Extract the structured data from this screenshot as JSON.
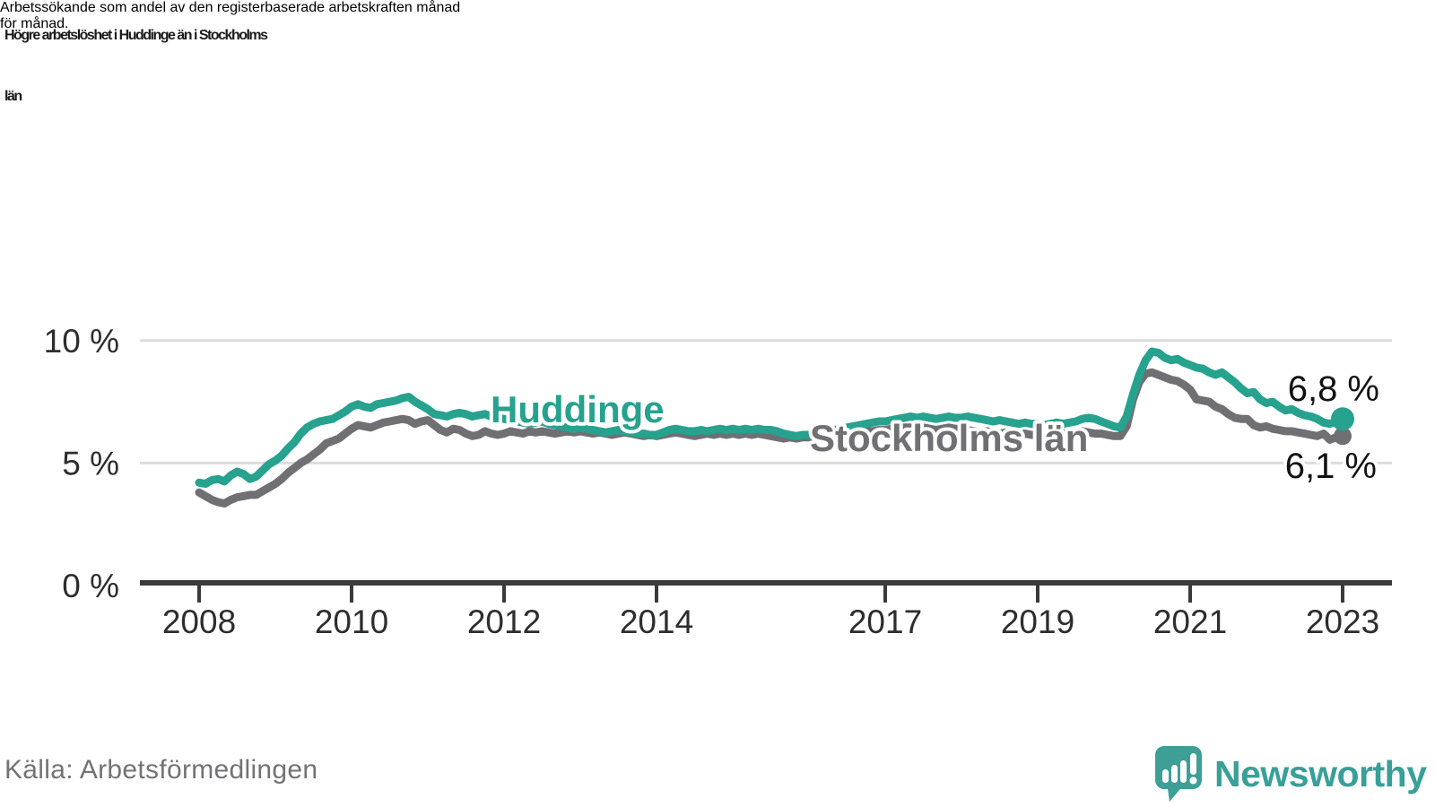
{
  "header": {
    "title_lines": [
      "Högre arbetslöshet i Huddinge än i Stockholms",
      "län"
    ],
    "subtitle_lines": [
      "Arbetssökande som andel av den registerbaserade arbetskraften månad",
      "för månad."
    ]
  },
  "footer": {
    "source": "Källa: Arbetsförmedlingen",
    "brand": "Newsworthy",
    "logo_icon": "newsworthy-speech-bubble-bar-chart-icon"
  },
  "colors": {
    "huddinge": "#26a28e",
    "stockholm": "#6f6f74",
    "grid": "#dcdcdc",
    "axis": "#3a3a3a",
    "tick_label": "#2d2d2d",
    "value_label": "#111111",
    "title": "#1b1b1b",
    "source": "#737376",
    "brand": "#38a098"
  },
  "chart_data": {
    "type": "line",
    "title": "Högre arbetslöshet i Huddinge än i Stockholms län",
    "subtitle": "Arbetssökande som andel av den registerbaserade arbetskraften månad för månad.",
    "xlabel": "",
    "ylabel": "",
    "x_unit": "month",
    "x_start_year": 2008,
    "x_end": "2023-01",
    "ylim": [
      0,
      10.7
    ],
    "grid": "horizontal-only",
    "legend": "inline-labels-on-lines",
    "x_ticks": [
      {
        "v": 2008,
        "label": "2008"
      },
      {
        "v": 2010,
        "label": "2010"
      },
      {
        "v": 2012,
        "label": "2012"
      },
      {
        "v": 2014,
        "label": "2014"
      },
      {
        "v": 2017,
        "label": "2017"
      },
      {
        "v": 2019,
        "label": "2019"
      },
      {
        "v": 2021,
        "label": "2021"
      },
      {
        "v": 2023,
        "label": "2023"
      }
    ],
    "y_ticks": [
      {
        "v": 0,
        "label": "0 %"
      },
      {
        "v": 5,
        "label": "5 %"
      },
      {
        "v": 10,
        "label": "10 %"
      }
    ],
    "series": [
      {
        "name": "Huddinge",
        "color": "#26a28e",
        "end_label": "6,8 %",
        "end_value": 6.8,
        "end_marker": true,
        "values": [
          4.2,
          4.15,
          4.3,
          4.35,
          4.25,
          4.5,
          4.65,
          4.55,
          4.35,
          4.45,
          4.7,
          4.95,
          5.1,
          5.3,
          5.6,
          5.85,
          6.2,
          6.45,
          6.6,
          6.7,
          6.75,
          6.8,
          6.95,
          7.1,
          7.3,
          7.4,
          7.3,
          7.25,
          7.4,
          7.45,
          7.5,
          7.55,
          7.65,
          7.7,
          7.5,
          7.35,
          7.2,
          7.0,
          6.95,
          6.9,
          7.0,
          7.05,
          7.0,
          6.9,
          6.95,
          7.0,
          6.9,
          6.85,
          6.8,
          6.75,
          6.7,
          6.65,
          6.6,
          6.65,
          6.7,
          6.6,
          6.55,
          6.5,
          6.45,
          6.4,
          6.45,
          6.4,
          6.35,
          6.3,
          6.25,
          6.3,
          6.35,
          6.3,
          6.25,
          6.2,
          6.2,
          6.15,
          6.15,
          6.25,
          6.35,
          6.4,
          6.35,
          6.3,
          6.3,
          6.35,
          6.3,
          6.35,
          6.4,
          6.35,
          6.4,
          6.35,
          6.4,
          6.35,
          6.4,
          6.35,
          6.35,
          6.3,
          6.2,
          6.15,
          6.1,
          6.15,
          6.15,
          6.2,
          6.25,
          6.3,
          6.35,
          6.4,
          6.45,
          6.5,
          6.55,
          6.6,
          6.65,
          6.7,
          6.7,
          6.75,
          6.8,
          6.85,
          6.9,
          6.85,
          6.9,
          6.85,
          6.8,
          6.85,
          6.9,
          6.85,
          6.85,
          6.9,
          6.85,
          6.8,
          6.75,
          6.7,
          6.75,
          6.7,
          6.65,
          6.6,
          6.65,
          6.6,
          6.6,
          6.55,
          6.6,
          6.65,
          6.6,
          6.65,
          6.7,
          6.8,
          6.85,
          6.8,
          6.7,
          6.6,
          6.5,
          6.45,
          6.9,
          7.8,
          8.6,
          9.2,
          9.55,
          9.5,
          9.3,
          9.2,
          9.25,
          9.1,
          9.0,
          8.9,
          8.85,
          8.7,
          8.6,
          8.7,
          8.5,
          8.3,
          8.05,
          7.85,
          7.9,
          7.6,
          7.45,
          7.5,
          7.3,
          7.15,
          7.2,
          7.05,
          6.95,
          6.9,
          6.8,
          6.65,
          6.6,
          6.7,
          6.8
        ]
      },
      {
        "name": "Stockholms län",
        "color": "#6f6f74",
        "end_label": "6,1 %",
        "end_value": 6.1,
        "end_marker": true,
        "values": [
          3.8,
          3.65,
          3.5,
          3.4,
          3.35,
          3.5,
          3.6,
          3.65,
          3.7,
          3.7,
          3.85,
          4.0,
          4.15,
          4.35,
          4.6,
          4.8,
          5.0,
          5.15,
          5.35,
          5.55,
          5.8,
          5.9,
          6.0,
          6.2,
          6.4,
          6.55,
          6.5,
          6.45,
          6.55,
          6.65,
          6.7,
          6.75,
          6.8,
          6.75,
          6.6,
          6.7,
          6.75,
          6.55,
          6.35,
          6.25,
          6.4,
          6.35,
          6.2,
          6.1,
          6.15,
          6.3,
          6.2,
          6.15,
          6.2,
          6.3,
          6.25,
          6.2,
          6.3,
          6.25,
          6.3,
          6.25,
          6.2,
          6.25,
          6.3,
          6.25,
          6.3,
          6.25,
          6.2,
          6.25,
          6.2,
          6.15,
          6.2,
          6.25,
          6.2,
          6.15,
          6.1,
          6.15,
          6.1,
          6.15,
          6.2,
          6.25,
          6.2,
          6.15,
          6.1,
          6.15,
          6.2,
          6.15,
          6.2,
          6.15,
          6.2,
          6.15,
          6.2,
          6.15,
          6.2,
          6.15,
          6.1,
          6.05,
          6.0,
          6.05,
          6.0,
          6.05,
          6.05,
          6.1,
          6.1,
          6.15,
          6.15,
          6.2,
          6.2,
          6.25,
          6.25,
          6.3,
          6.3,
          6.35,
          6.35,
          6.4,
          6.4,
          6.45,
          6.45,
          6.4,
          6.45,
          6.4,
          6.35,
          6.4,
          6.45,
          6.4,
          6.4,
          6.35,
          6.3,
          6.25,
          6.3,
          6.25,
          6.2,
          6.25,
          6.2,
          6.15,
          6.2,
          6.15,
          6.15,
          6.1,
          6.15,
          6.2,
          6.25,
          6.2,
          6.25,
          6.3,
          6.25,
          6.2,
          6.2,
          6.15,
          6.1,
          6.1,
          6.5,
          7.6,
          8.3,
          8.65,
          8.7,
          8.6,
          8.5,
          8.4,
          8.35,
          8.2,
          8.0,
          7.6,
          7.55,
          7.5,
          7.3,
          7.2,
          7.0,
          6.85,
          6.8,
          6.8,
          6.55,
          6.45,
          6.5,
          6.4,
          6.35,
          6.3,
          6.3,
          6.25,
          6.2,
          6.15,
          6.1,
          6.2,
          5.95,
          6.05,
          6.1
        ]
      }
    ]
  }
}
